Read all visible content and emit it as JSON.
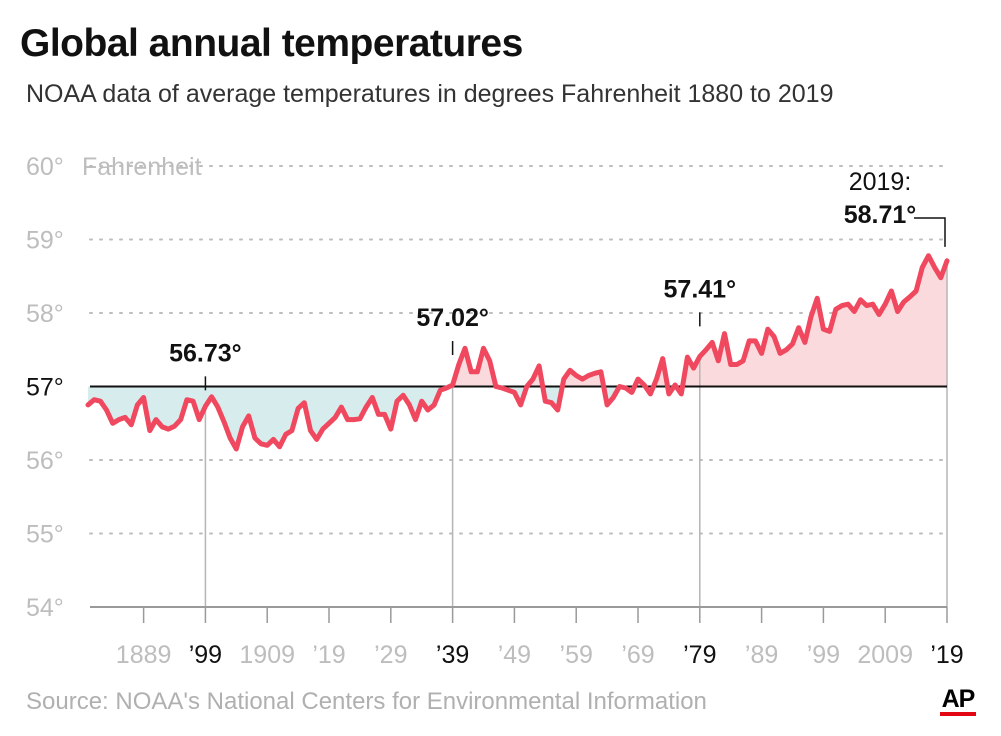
{
  "header": {
    "title": "Global annual temperatures",
    "subtitle": "NOAA data of average temperatures in degrees Fahrenheit 1880 to 2019"
  },
  "footer": {
    "source": "Source: NOAA's National Centers for Environmental Information",
    "logo": "AP"
  },
  "colors": {
    "line": "#f0485f",
    "warm_fill": "#fadadd",
    "cool_fill": "#d7ecec",
    "baseline": "#111111",
    "grid": "#bdbdbd",
    "logo_bar": "#e30613"
  },
  "chart_data": {
    "type": "line",
    "title": "Global annual temperatures",
    "subtitle": "NOAA data of average temperatures in degrees Fahrenheit 1880 to 2019",
    "ylabel": "Fahrenheit",
    "ylim": [
      54,
      60
    ],
    "xlim": [
      1880,
      2019
    ],
    "baseline": 57,
    "grid": "dotted horizontal",
    "y_ticks": [
      {
        "value": 60,
        "label": "60°"
      },
      {
        "value": 59,
        "label": "59°"
      },
      {
        "value": 58,
        "label": "58°"
      },
      {
        "value": 57,
        "label": "57°"
      },
      {
        "value": 56,
        "label": "56°"
      },
      {
        "value": 55,
        "label": "55°"
      },
      {
        "value": 54,
        "label": "54°"
      }
    ],
    "x_ticks": [
      {
        "year": 1889,
        "label": "1889",
        "emphasis": false
      },
      {
        "year": 1899,
        "label": "’99",
        "emphasis": true
      },
      {
        "year": 1909,
        "label": "1909",
        "emphasis": false
      },
      {
        "year": 1919,
        "label": "’19",
        "emphasis": false
      },
      {
        "year": 1929,
        "label": "’29",
        "emphasis": false
      },
      {
        "year": 1939,
        "label": "’39",
        "emphasis": true
      },
      {
        "year": 1949,
        "label": "’49",
        "emphasis": false
      },
      {
        "year": 1959,
        "label": "’59",
        "emphasis": false
      },
      {
        "year": 1969,
        "label": "’69",
        "emphasis": false
      },
      {
        "year": 1979,
        "label": "’79",
        "emphasis": true
      },
      {
        "year": 1989,
        "label": "’89",
        "emphasis": false
      },
      {
        "year": 1999,
        "label": "’99",
        "emphasis": false
      },
      {
        "year": 2009,
        "label": "2009",
        "emphasis": false
      },
      {
        "year": 2019,
        "label": "’19",
        "emphasis": true
      }
    ],
    "annotations": [
      {
        "year": 1899,
        "value": 56.73,
        "label": "56.73°",
        "prefix": ""
      },
      {
        "year": 1939,
        "value": 57.02,
        "label": "57.02°",
        "prefix": ""
      },
      {
        "year": 1979,
        "value": 57.41,
        "label": "57.41°",
        "prefix": ""
      },
      {
        "year": 2019,
        "value": 58.71,
        "label": "58.71°",
        "prefix": "2019:"
      }
    ],
    "series": [
      {
        "x": [
          1880,
          1881,
          1882,
          1883,
          1884,
          1885,
          1886,
          1887,
          1888,
          1889,
          1890,
          1891,
          1892,
          1893,
          1894,
          1895,
          1896,
          1897,
          1898,
          1899,
          1900,
          1901,
          1902,
          1903,
          1904,
          1905,
          1906,
          1907,
          1908,
          1909,
          1910,
          1911,
          1912,
          1913,
          1914,
          1915,
          1916,
          1917,
          1918,
          1919,
          1920,
          1921,
          1922,
          1923,
          1924,
          1925,
          1926,
          1927,
          1928,
          1929,
          1930,
          1931,
          1932,
          1933,
          1934,
          1935,
          1936,
          1937,
          1938,
          1939,
          1940,
          1941,
          1942,
          1943,
          1944,
          1945,
          1946,
          1947,
          1948,
          1949,
          1950,
          1951,
          1952,
          1953,
          1954,
          1955,
          1956,
          1957,
          1958,
          1959,
          1960,
          1961,
          1962,
          1963,
          1964,
          1965,
          1966,
          1967,
          1968,
          1969,
          1970,
          1971,
          1972,
          1973,
          1974,
          1975,
          1976,
          1977,
          1978,
          1979,
          1980,
          1981,
          1982,
          1983,
          1984,
          1985,
          1986,
          1987,
          1988,
          1989,
          1990,
          1991,
          1992,
          1993,
          1994,
          1995,
          1996,
          1997,
          1998,
          1999,
          2000,
          2001,
          2002,
          2003,
          2004,
          2005,
          2006,
          2007,
          2008,
          2009,
          2010,
          2011,
          2012,
          2013,
          2014,
          2015,
          2016,
          2017,
          2018,
          2019
        ],
        "values": [
          56.75,
          56.82,
          56.8,
          56.68,
          56.5,
          56.55,
          56.58,
          56.48,
          56.75,
          56.85,
          56.4,
          56.55,
          56.45,
          56.42,
          56.46,
          56.55,
          56.82,
          56.8,
          56.55,
          56.73,
          56.86,
          56.72,
          56.52,
          56.3,
          56.15,
          56.45,
          56.6,
          56.3,
          56.22,
          56.2,
          56.28,
          56.18,
          56.35,
          56.4,
          56.7,
          56.78,
          56.4,
          56.28,
          56.42,
          56.5,
          56.58,
          56.72,
          56.55,
          56.55,
          56.56,
          56.72,
          56.85,
          56.62,
          56.62,
          56.42,
          56.8,
          56.88,
          56.75,
          56.55,
          56.8,
          56.68,
          56.75,
          56.95,
          56.98,
          57.02,
          57.3,
          57.52,
          57.2,
          57.2,
          57.52,
          57.35,
          57.0,
          56.98,
          56.95,
          56.92,
          56.75,
          57.0,
          57.1,
          57.28,
          56.8,
          56.78,
          56.68,
          57.1,
          57.22,
          57.15,
          57.1,
          57.15,
          57.18,
          57.2,
          56.75,
          56.85,
          57.0,
          56.98,
          56.92,
          57.1,
          57.02,
          56.9,
          57.1,
          57.38,
          56.9,
          57.02,
          56.9,
          57.4,
          57.25,
          57.41,
          57.5,
          57.6,
          57.35,
          57.72,
          57.3,
          57.3,
          57.35,
          57.62,
          57.62,
          57.45,
          57.78,
          57.68,
          57.45,
          57.5,
          57.58,
          57.8,
          57.6,
          57.95,
          58.2,
          57.78,
          57.75,
          58.05,
          58.1,
          58.12,
          58.02,
          58.18,
          58.1,
          58.12,
          57.98,
          58.12,
          58.3,
          58.02,
          58.15,
          58.22,
          58.3,
          58.62,
          58.78,
          58.62,
          58.48,
          58.71
        ]
      }
    ]
  }
}
